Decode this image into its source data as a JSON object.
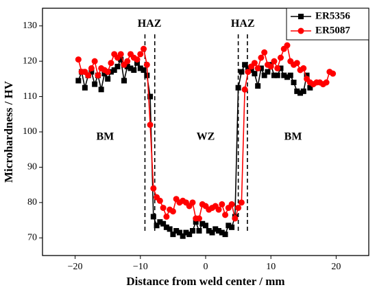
{
  "chart_data": {
    "type": "line",
    "xlabel": "Distance from weld center / mm",
    "ylabel": "Microhardness / HV",
    "xlim": [
      -25,
      25
    ],
    "ylim": [
      65,
      135
    ],
    "xticks": [
      {
        "value": -20,
        "label": "−20"
      },
      {
        "value": -10,
        "label": "−10"
      },
      0,
      10,
      20
    ],
    "yticks": [
      70,
      80,
      90,
      100,
      110,
      120,
      130
    ],
    "legend": "upper right",
    "reference_lines": [
      -9.3,
      -7.8,
      5,
      6.4
    ],
    "annotations": [
      {
        "text": "HAZ",
        "x": -8.6,
        "y": 130.5
      },
      {
        "text": "HAZ",
        "x": 5.7,
        "y": 130.5
      },
      {
        "text": "BM",
        "x": -15.4,
        "y": 98.5
      },
      {
        "text": "WZ",
        "x": 0,
        "y": 98.5
      },
      {
        "text": "BM",
        "x": 13.4,
        "y": 98.5
      }
    ],
    "series": [
      {
        "name": "ER5356",
        "color": "#000000",
        "marker": "square",
        "x": [
          -19.5,
          -19,
          -18.5,
          -18,
          -17.5,
          -17,
          -16.5,
          -16,
          -15.5,
          -15,
          -14.5,
          -14,
          -13.5,
          -13,
          -12.5,
          -12,
          -11.5,
          -11,
          -10.5,
          -10,
          -9.5,
          -9,
          -8.5,
          -8,
          -7.5,
          -7,
          -6.5,
          -6,
          -5.5,
          -5,
          -4.5,
          -4,
          -3.5,
          -3,
          -2.5,
          -2,
          -1.5,
          -1,
          -0.5,
          0,
          0.5,
          1,
          1.5,
          2,
          2.5,
          3,
          3.5,
          4,
          4.5,
          5,
          5.5,
          6,
          6.5,
          7,
          7.5,
          8,
          8.5,
          9,
          9.5,
          10,
          10.5,
          11,
          11.5,
          12,
          12.5,
          13,
          13.5,
          14,
          14.5,
          15,
          15.5,
          16
        ],
        "values": [
          114.5,
          117,
          112.5,
          116,
          117,
          113.5,
          116,
          112,
          116.5,
          115,
          117,
          117.5,
          118.5,
          120.5,
          114.5,
          118.5,
          118,
          117.5,
          119.5,
          118,
          117.5,
          116,
          110,
          76,
          73.5,
          74.5,
          74,
          73,
          72.5,
          71,
          72,
          71.5,
          70.5,
          71.5,
          71,
          72,
          74.5,
          72,
          74,
          73.5,
          72,
          71.5,
          72.5,
          72,
          71.5,
          71,
          73.5,
          73,
          76,
          112.5,
          117,
          119,
          118,
          117.5,
          116.5,
          113,
          118,
          116,
          117,
          119,
          116,
          116,
          118,
          116,
          115.5,
          116,
          114,
          111.5,
          111,
          111.5,
          116,
          112.5
        ]
      },
      {
        "name": "ER5087",
        "color": "#ff0000",
        "marker": "circle",
        "x": [
          -19.5,
          -19,
          -18.5,
          -18,
          -17.5,
          -17,
          -16.5,
          -16,
          -15.5,
          -15,
          -14.5,
          -14,
          -13.5,
          -13,
          -12.5,
          -12,
          -11.5,
          -11,
          -10.5,
          -10,
          -9.5,
          -9,
          -8.5,
          -8,
          -7.5,
          -7,
          -6.5,
          -6,
          -5.5,
          -5,
          -4.5,
          -4,
          -3.5,
          -3,
          -2.5,
          -2,
          -1.5,
          -1,
          -0.5,
          0,
          0.5,
          1,
          1.5,
          2,
          2.5,
          3,
          3.5,
          4,
          4.5,
          5,
          5.5,
          6,
          6.5,
          7,
          7.5,
          8,
          8.5,
          9,
          9.5,
          10,
          10.5,
          11,
          11.5,
          12,
          12.5,
          13,
          13.5,
          14,
          14.5,
          15,
          15.5,
          16,
          16.5,
          17,
          17.5,
          18,
          18.5,
          19,
          19.5
        ],
        "values": [
          120.5,
          117,
          117,
          116,
          118,
          120,
          116,
          118,
          117.5,
          117,
          119.5,
          122,
          121,
          122,
          119,
          120,
          122,
          121,
          120.5,
          122,
          123.5,
          119,
          102,
          84,
          81.5,
          80.5,
          78.5,
          76,
          78,
          77.5,
          81,
          80,
          80.5,
          80,
          79,
          80,
          75.5,
          75.5,
          79.5,
          79,
          78,
          78.5,
          79,
          78,
          79.5,
          76.5,
          78.5,
          79.5,
          75.5,
          78.5,
          80,
          112,
          117,
          118.5,
          119.5,
          118,
          121,
          122.5,
          119,
          118.5,
          120,
          118,
          121,
          123.5,
          124.5,
          120,
          119,
          119.5,
          117.5,
          118,
          115,
          114,
          113.5,
          114,
          114,
          113.5,
          114,
          117,
          116.5
        ]
      }
    ]
  }
}
